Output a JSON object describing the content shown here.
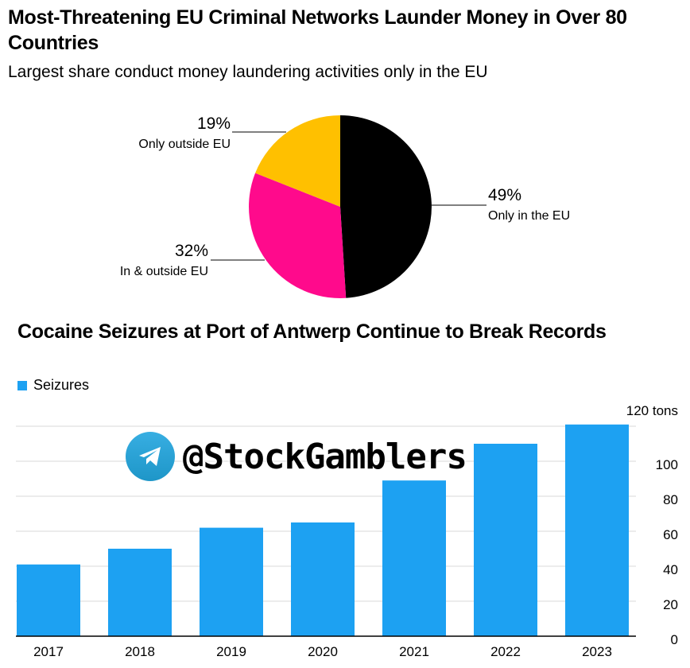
{
  "chart_data": [
    {
      "type": "pie",
      "title": "Most-Threatening EU Criminal Networks Launder Money in Over 80 Countries",
      "subtitle": "Largest share conduct money laundering activities only in the EU",
      "slices": [
        {
          "label": "Only in the EU",
          "value": 49,
          "value_label": "49%",
          "color": "#000000"
        },
        {
          "label": "In & outside EU",
          "value": 32,
          "value_label": "32%",
          "color": "#ff0a8c"
        },
        {
          "label": "Only outside EU",
          "value": 19,
          "value_label": "19%",
          "color": "#ffc000"
        }
      ]
    },
    {
      "type": "bar",
      "title": "Cocaine Seizures at Port of Antwerp Continue to Break Records",
      "legend": [
        "Seizures"
      ],
      "categories": [
        "2017",
        "2018",
        "2019",
        "2020",
        "2021",
        "2022",
        "2023"
      ],
      "series": [
        {
          "name": "Seizures",
          "values": [
            41,
            50,
            62,
            65,
            89,
            110,
            121
          ],
          "color": "#1da1f2"
        }
      ],
      "ylim": [
        0,
        120
      ],
      "yticks": [
        {
          "value": 0,
          "label": "0"
        },
        {
          "value": 20,
          "label": "20"
        },
        {
          "value": 40,
          "label": "40"
        },
        {
          "value": 60,
          "label": "60"
        },
        {
          "value": 80,
          "label": "80"
        },
        {
          "value": 100,
          "label": "100"
        },
        {
          "value": 120,
          "label": "120 tons"
        }
      ],
      "grid": true,
      "yaxis_side": "right"
    }
  ],
  "watermark": {
    "text": "@StockGamblers",
    "icon": "telegram-icon"
  }
}
